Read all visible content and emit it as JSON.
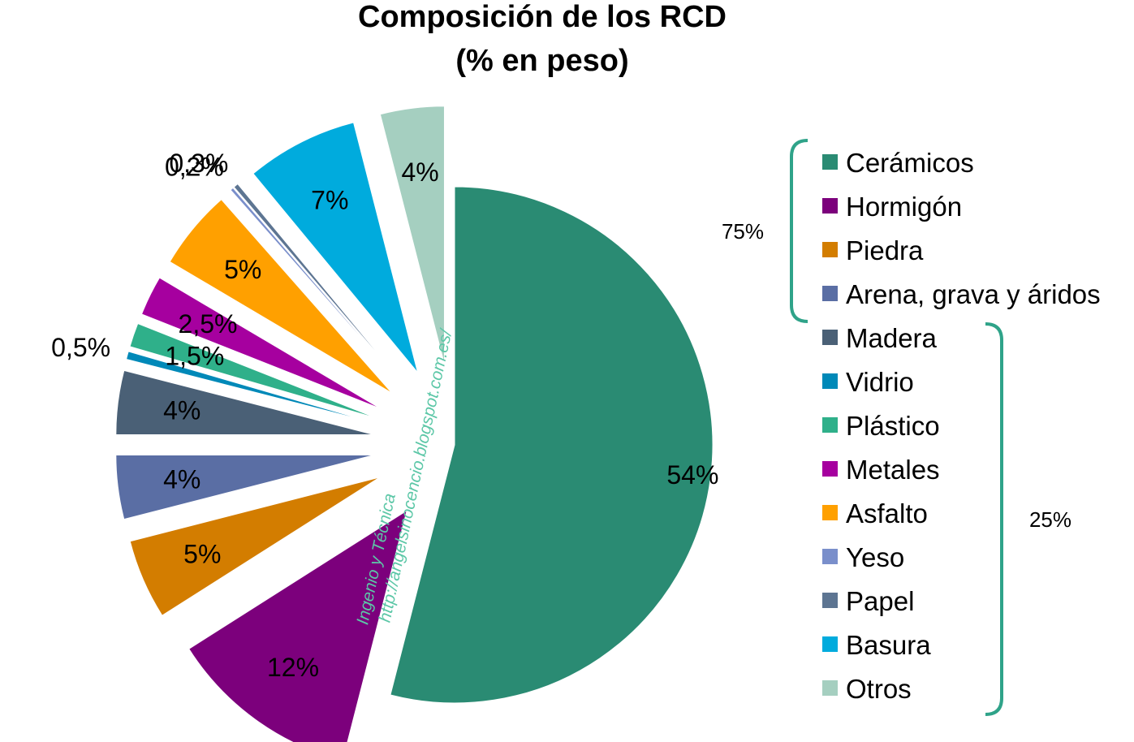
{
  "chart_data": {
    "type": "pie",
    "title": "Composición de los RCD",
    "subtitle": "(% en peso)",
    "legend_position": "right",
    "slices": [
      {
        "label": "Cerámicos",
        "value": 54,
        "value_label": "54%",
        "color": "#2a8b73"
      },
      {
        "label": "Hormigón",
        "value": 12,
        "value_label": "12%",
        "color": "#7c007c"
      },
      {
        "label": "Piedra",
        "value": 5,
        "value_label": "5%",
        "color": "#d37d00"
      },
      {
        "label": "Arena, grava y áridos",
        "value": 4,
        "value_label": "4%",
        "color": "#5a6ea4"
      },
      {
        "label": "Madera",
        "value": 4,
        "value_label": "4%",
        "color": "#4a6076"
      },
      {
        "label": "Vidrio",
        "value": 0.5,
        "value_label": "0,5%",
        "color": "#0089b8"
      },
      {
        "label": "Plástico",
        "value": 1.5,
        "value_label": "1,5%",
        "color": "#2fb08a"
      },
      {
        "label": "Metales",
        "value": 2.5,
        "value_label": "2,5%",
        "color": "#a6009f"
      },
      {
        "label": "Asfalto",
        "value": 5,
        "value_label": "5%",
        "color": "#ffa000"
      },
      {
        "label": "Yeso",
        "value": 0.2,
        "value_label": "0,2%",
        "color": "#7a8fcb"
      },
      {
        "label": "Papel",
        "value": 0.3,
        "value_label": "0,3%",
        "color": "#5d7592"
      },
      {
        "label": "Basura",
        "value": 7,
        "value_label": "7%",
        "color": "#00abdd"
      },
      {
        "label": "Otros",
        "value": 4,
        "value_label": "4%",
        "color": "#a5cfc0"
      }
    ],
    "groups": [
      {
        "label": "75%",
        "members": [
          "Cerámicos",
          "Hormigón",
          "Piedra",
          "Arena, grava y áridos"
        ]
      },
      {
        "label": "25%",
        "members": [
          "Madera",
          "Vidrio",
          "Plástico",
          "Metales",
          "Asfalto",
          "Yeso",
          "Papel",
          "Basura",
          "Otros"
        ]
      }
    ],
    "bracket_color": "#2fa389"
  },
  "watermark": {
    "line1": "Ingenio  y Técnica",
    "line2": "http://angelsinocencio.blogspot.com.es/"
  }
}
